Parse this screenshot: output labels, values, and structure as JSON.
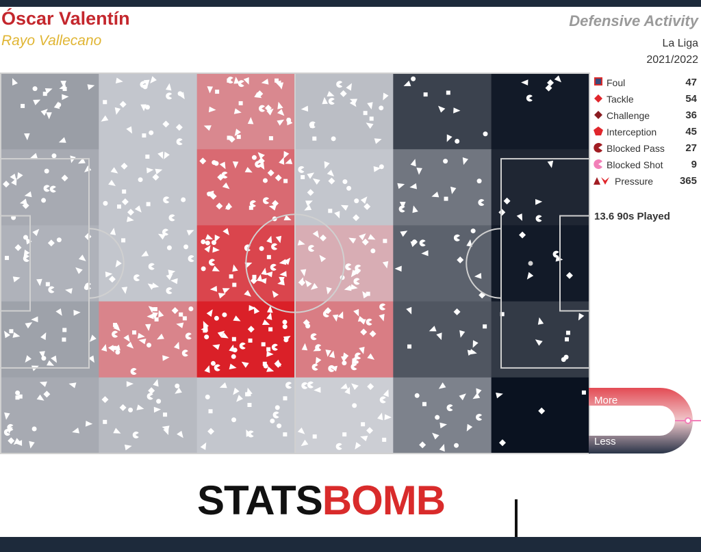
{
  "header": {
    "player": "Óscar Valentín",
    "team": "Rayo Vallecano",
    "title": "Defensive Activity",
    "competition": "La Liga",
    "season": "2021/2022"
  },
  "legend": [
    {
      "label": "Foul",
      "count": "47",
      "icon": "square-icon"
    },
    {
      "label": "Tackle",
      "count": "54",
      "icon": "diamond-icon"
    },
    {
      "label": "Challenge",
      "count": "36",
      "icon": "diamond-dark-icon"
    },
    {
      "label": "Interception",
      "count": "45",
      "icon": "pentagon-icon"
    },
    {
      "label": "Blocked Pass",
      "count": "27",
      "icon": "pacman-icon"
    },
    {
      "label": "Blocked Shot",
      "count": "9",
      "icon": "pacman-pink-icon"
    },
    {
      "label": "Pressure",
      "count": "365",
      "icon": "chevron-pair-icon"
    }
  ],
  "minutes_played": "13.6 90s Played",
  "scale": {
    "high": "More",
    "low": "Less"
  },
  "logo": {
    "dark": "STATS",
    "red": "BOMB"
  },
  "colors": {
    "red": "#c4272d",
    "gold": "#e0b533",
    "navy": "#1d2a3b",
    "legend_red": "#d92b2b"
  },
  "chart_data": {
    "type": "heatmap",
    "title": "Defensive Activity",
    "description_units": "relative intensity 0 (least) to 1 (most), 6 columns along pitch length x 5 rows across width",
    "columns": 6,
    "rows": 5,
    "values": [
      [
        0.35,
        0.45,
        0.72,
        0.43,
        0.12,
        0.02
      ],
      [
        0.38,
        0.45,
        0.8,
        0.45,
        0.25,
        0.05
      ],
      [
        0.4,
        0.45,
        0.9,
        0.62,
        0.2,
        0.02
      ],
      [
        0.36,
        0.73,
        1.0,
        0.75,
        0.17,
        0.1
      ],
      [
        0.38,
        0.42,
        0.45,
        0.47,
        0.28,
        0.0
      ]
    ],
    "event_counts": {
      "Foul": 47,
      "Tackle": 54,
      "Challenge": 36,
      "Interception": 45,
      "Blocked Pass": 27,
      "Blocked Shot": 9,
      "Pressure": 365
    }
  }
}
